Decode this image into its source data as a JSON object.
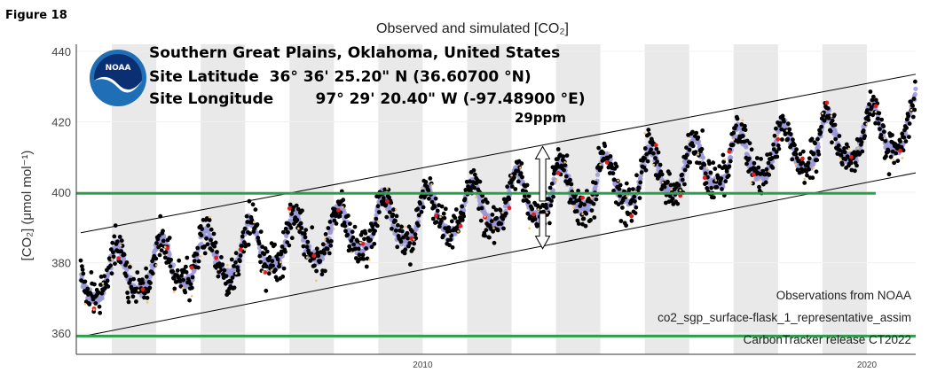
{
  "figure_label": "Figure 18",
  "logo": {
    "text": "NOAA",
    "colors": {
      "ring": "#1e6fb5",
      "sky": "#0a2f73",
      "gull": "#ffffff"
    }
  },
  "annotations": {
    "site_name": "Southern Great Plains, Oklahoma, United States",
    "latitude": "Site Latitude  36° 36' 25.20\" N (36.60700 °N)",
    "longitude": "Site Longitude        97° 29' 20.40\" W (-97.48900 °E)",
    "ppm_note": "29ppm"
  },
  "footnotes": [
    "Observations from NOAA",
    "co2_sgp_surface-flask_1_representative_assim",
    "CarbonTracker release CT2022"
  ],
  "chart_data": {
    "type": "scatter",
    "title": "Observed and simulated [CO₂]",
    "ylabel": "[CO₂] (μmol mol⁻¹)",
    "xlabel": "",
    "xlim": [
      2002.2,
      2021.1
    ],
    "ylim": [
      354,
      442
    ],
    "yticks": [
      360,
      380,
      400,
      420,
      440
    ],
    "xticks": [
      {
        "value": 2010,
        "label": "2010"
      },
      {
        "value": 2020,
        "label": "2020"
      }
    ],
    "grid": true,
    "shaded_year_bands": [
      2003,
      2005,
      2007,
      2009,
      2011,
      2013,
      2015,
      2017,
      2019
    ],
    "seasonal_cycle": {
      "start_year": 2002.3,
      "end_year": 2021.1,
      "baseline_at_start": 374.5,
      "annual_growth": 2.35,
      "amplitude": 7,
      "spread": 5
    },
    "series": [
      {
        "role": "observed",
        "color": "#000000"
      },
      {
        "role": "simulated",
        "color": "#9a98d8"
      },
      {
        "role": "rejected",
        "color": "#e21c1c"
      },
      {
        "role": "not-assimilated",
        "color": "#f2c36b"
      }
    ],
    "trend_lines": [
      {
        "role": "upper",
        "x": [
          2002.3,
          2021.1
        ],
        "y": [
          388.5,
          433.5
        ],
        "color": "#000000"
      },
      {
        "role": "lower",
        "x": [
          2002.3,
          2021.1
        ],
        "y": [
          359,
          405.5
        ],
        "color": "#000000"
      }
    ],
    "horizontal_lines": [
      {
        "y": 399.7,
        "x": [
          2002.2,
          2020.2
        ],
        "color": "#2e9e4c"
      },
      {
        "y": 359.2,
        "x": [
          2002.2,
          2021.1
        ],
        "color": "#2e9e4c"
      }
    ],
    "arrows": [
      {
        "direction": "up",
        "x": 2012.7,
        "y_from": 397.5,
        "y_to": 413
      },
      {
        "direction": "down",
        "x": 2012.7,
        "y_from": 394,
        "y_to": 384
      }
    ]
  }
}
